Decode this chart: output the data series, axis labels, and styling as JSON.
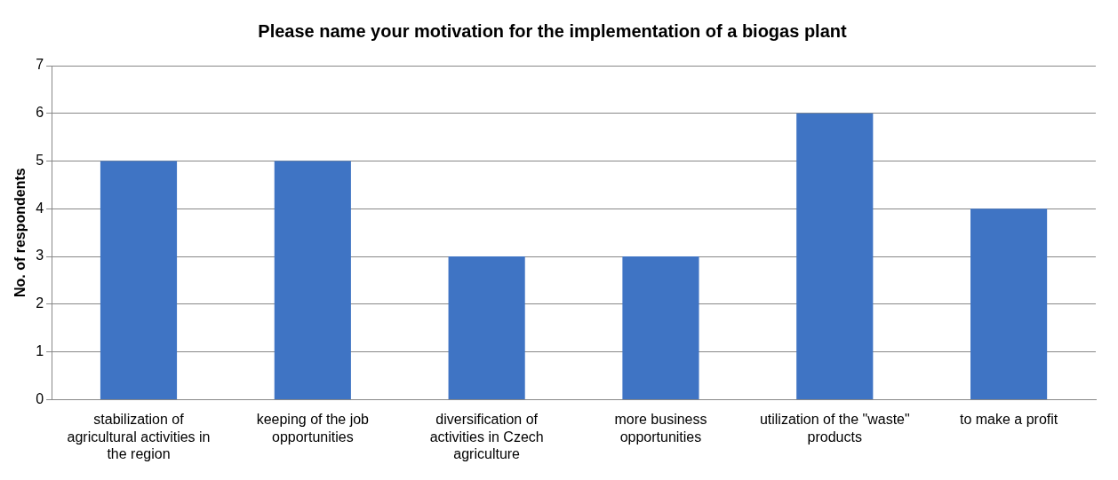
{
  "chart_data": {
    "type": "bar",
    "title": "Please name your motivation for the implementation of a biogas plant",
    "ylabel": "No. of respondents",
    "categories": [
      "stabilization of agricultural activities in the region",
      "keeping of the job opportunities",
      "diversification of activities in Czech agriculture",
      "more business opportunities",
      "utilization of the \"waste\" products",
      "to make a profit"
    ],
    "values": [
      5,
      5,
      3,
      3,
      6,
      4
    ],
    "color": "#3f74c4",
    "ylim": [
      0,
      7
    ],
    "yticks": [
      0,
      1,
      2,
      3,
      4,
      5,
      6,
      7
    ],
    "grid": "y"
  }
}
